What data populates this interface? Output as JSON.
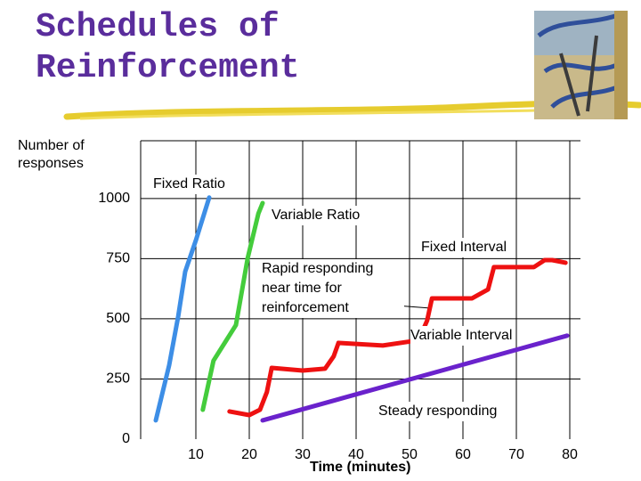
{
  "chart_data": {
    "type": "line",
    "title": "Schedules of Reinforcement",
    "y_label": "Number of responses",
    "x_label": "Time (minutes)",
    "xlim": [
      0,
      82
    ],
    "ylim": [
      0,
      1240
    ],
    "xticks": [
      10,
      20,
      30,
      40,
      50,
      60,
      70,
      80
    ],
    "yticks": [
      0,
      250,
      500,
      750,
      1000
    ],
    "grid": true,
    "series": [
      {
        "name": "Fixed Ratio",
        "color": "#3d8ee6",
        "x": [
          2.5,
          5,
          6.7,
          8,
          10,
          12.5
        ],
        "values": [
          78,
          307,
          511,
          696,
          826,
          1004
        ]
      },
      {
        "name": "Variable Ratio",
        "color": "#44cc3c",
        "x": [
          11.3,
          13.3,
          17.5,
          19.7,
          21.7,
          22.5
        ],
        "values": [
          122,
          326,
          474,
          752,
          937,
          981
        ]
      },
      {
        "name": "Fixed Interval",
        "color": "#ee1111",
        "x": [
          16.3,
          20,
          22,
          23.3,
          24.2,
          30,
          34.2,
          35.8,
          36.7,
          45,
          51.7,
          53.3,
          54.2,
          61.7,
          64.7,
          65.8,
          73.3,
          75.3,
          76.7,
          79.2
        ],
        "values": [
          115,
          100,
          122,
          196,
          296,
          285,
          293,
          344,
          400,
          389,
          411,
          493,
          585,
          585,
          622,
          715,
          715,
          744,
          744,
          733
        ]
      },
      {
        "name": "Variable Interval",
        "color": "#6a22cc",
        "x": [
          22.5,
          79.5
        ],
        "values": [
          78,
          430
        ]
      }
    ],
    "annotations": [
      "Rapid responding near time for reinforcement",
      "Steady responding"
    ]
  }
}
